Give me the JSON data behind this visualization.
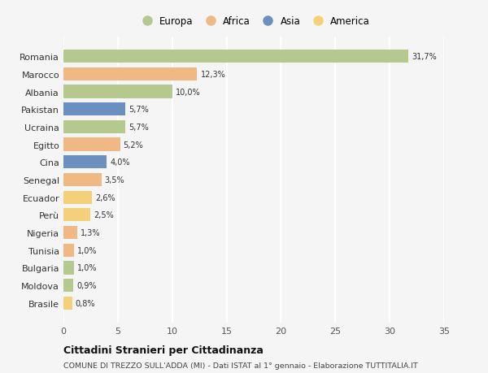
{
  "countries": [
    "Romania",
    "Marocco",
    "Albania",
    "Pakistan",
    "Ucraina",
    "Egitto",
    "Cina",
    "Senegal",
    "Ecuador",
    "Perù",
    "Nigeria",
    "Tunisia",
    "Bulgaria",
    "Moldova",
    "Brasile"
  ],
  "values": [
    31.7,
    12.3,
    10.0,
    5.7,
    5.7,
    5.2,
    4.0,
    3.5,
    2.6,
    2.5,
    1.3,
    1.0,
    1.0,
    0.9,
    0.8
  ],
  "labels": [
    "31,7%",
    "12,3%",
    "10,0%",
    "5,7%",
    "5,7%",
    "5,2%",
    "4,0%",
    "3,5%",
    "2,6%",
    "2,5%",
    "1,3%",
    "1,0%",
    "1,0%",
    "0,9%",
    "0,8%"
  ],
  "colors": [
    "#b5c98e",
    "#f0b884",
    "#b5c98e",
    "#6b8fbf",
    "#b5c98e",
    "#f0b884",
    "#6b8fbf",
    "#f0b884",
    "#f5d07a",
    "#f5d07a",
    "#f0b884",
    "#f0b884",
    "#b5c98e",
    "#b5c98e",
    "#f5d07a"
  ],
  "continents": [
    "Europa",
    "Africa",
    "Europa",
    "Asia",
    "Europa",
    "Africa",
    "Asia",
    "Africa",
    "America",
    "America",
    "Africa",
    "Africa",
    "Europa",
    "Europa",
    "America"
  ],
  "legend_labels": [
    "Europa",
    "Africa",
    "Asia",
    "America"
  ],
  "legend_colors": [
    "#b5c98e",
    "#f0b884",
    "#6b8fbf",
    "#f5d07a"
  ],
  "title": "Cittadini Stranieri per Cittadinanza",
  "subtitle": "COMUNE DI TREZZO SULL'ADDA (MI) - Dati ISTAT al 1° gennaio - Elaborazione TUTTITALIA.IT",
  "xlim": [
    0,
    35
  ],
  "xticks": [
    0,
    5,
    10,
    15,
    20,
    25,
    30,
    35
  ],
  "bg_color": "#f5f5f5",
  "grid_color": "#ffffff",
  "bar_height": 0.75
}
